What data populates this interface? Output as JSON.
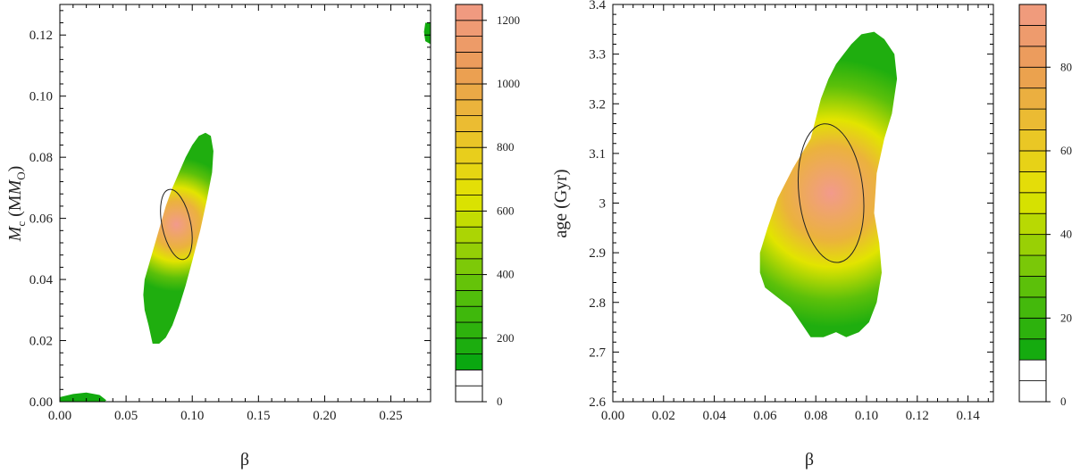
{
  "chart_data": [
    {
      "type": "contour",
      "xlabel": "β",
      "ylabel": {
        "main": "M",
        "sub": "c",
        "unit_open": " (M",
        "unit_sub": "O",
        "unit_close": ")"
      },
      "xlim": [
        0,
        0.28
      ],
      "ylim": [
        0,
        0.13
      ],
      "xticks": [
        "0.00",
        "0.05",
        "0.10",
        "0.15",
        "0.20",
        "0.25"
      ],
      "yticks": [
        "0.00",
        "0.02",
        "0.04",
        "0.06",
        "0.08",
        "0.10",
        "0.12"
      ],
      "colorbar": {
        "min": 0,
        "max": 1250,
        "step": 50,
        "ticks": [
          "0",
          "200",
          "400",
          "600",
          "800",
          "1000",
          "1200"
        ]
      },
      "peak": {
        "x": 0.088,
        "y": 0.058,
        "value": 1250
      },
      "contour_line_level": 800,
      "regions": [
        {
          "x": [
            0.07,
            0.067,
            0.064,
            0.063,
            0.064,
            0.068,
            0.074,
            0.08,
            0.085,
            0.09,
            0.095,
            0.1,
            0.105,
            0.11,
            0.114,
            0.116,
            0.115,
            0.111,
            0.106,
            0.1,
            0.095,
            0.09,
            0.085,
            0.08,
            0.075,
            0.07
          ],
          "y": [
            0.019,
            0.025,
            0.03,
            0.035,
            0.04,
            0.046,
            0.055,
            0.064,
            0.07,
            0.075,
            0.08,
            0.084,
            0.087,
            0.088,
            0.087,
            0.082,
            0.075,
            0.066,
            0.056,
            0.046,
            0.038,
            0.031,
            0.025,
            0.021,
            0.019,
            0.019
          ]
        },
        {
          "x": [
            0.0,
            0.0,
            0.01,
            0.02,
            0.03,
            0.035,
            0.034,
            0.0
          ],
          "y": [
            0.0,
            0.0015,
            0.0025,
            0.003,
            0.0022,
            0.0005,
            0.0,
            0.0
          ]
        },
        {
          "x": [
            0.28,
            0.276,
            0.275,
            0.276,
            0.28
          ],
          "y": [
            0.117,
            0.118,
            0.121,
            0.124,
            0.124
          ]
        }
      ]
    },
    {
      "type": "contour",
      "xlabel": "β",
      "ylabel": "age (Gyr)",
      "xlim": [
        0,
        0.15
      ],
      "ylim": [
        2.6,
        3.4
      ],
      "xticks": [
        "0.00",
        "0.02",
        "0.04",
        "0.06",
        "0.08",
        "0.10",
        "0.12",
        "0.14"
      ],
      "yticks": [
        "2.6",
        "2.7",
        "2.8",
        "2.9",
        "3",
        "3.1",
        "3.2",
        "3.3",
        "3.4"
      ],
      "colorbar": {
        "min": 0,
        "max": 95,
        "step": 5,
        "ticks": [
          "0",
          "20",
          "40",
          "60",
          "80"
        ]
      },
      "peak": {
        "x": 0.086,
        "y": 3.02,
        "value": 95
      },
      "contour_line_level": 60,
      "regions": [
        {
          "x": [
            0.078,
            0.071,
            0.065,
            0.061,
            0.058,
            0.058,
            0.06,
            0.065,
            0.07,
            0.074,
            0.078,
            0.083,
            0.088,
            0.092,
            0.097,
            0.101,
            0.104,
            0.106,
            0.105,
            0.103,
            0.104,
            0.107,
            0.11,
            0.112,
            0.111,
            0.107,
            0.103,
            0.098,
            0.094,
            0.091,
            0.088,
            0.085,
            0.082,
            0.08,
            0.078
          ],
          "y": [
            3.13,
            3.07,
            3.01,
            2.95,
            2.9,
            2.86,
            2.83,
            2.81,
            2.79,
            2.76,
            2.73,
            2.73,
            2.74,
            2.73,
            2.74,
            2.76,
            2.8,
            2.86,
            2.92,
            2.98,
            3.06,
            3.13,
            3.18,
            3.25,
            3.3,
            3.33,
            3.345,
            3.34,
            3.32,
            3.3,
            3.28,
            3.25,
            3.21,
            3.17,
            3.13
          ]
        }
      ]
    }
  ]
}
